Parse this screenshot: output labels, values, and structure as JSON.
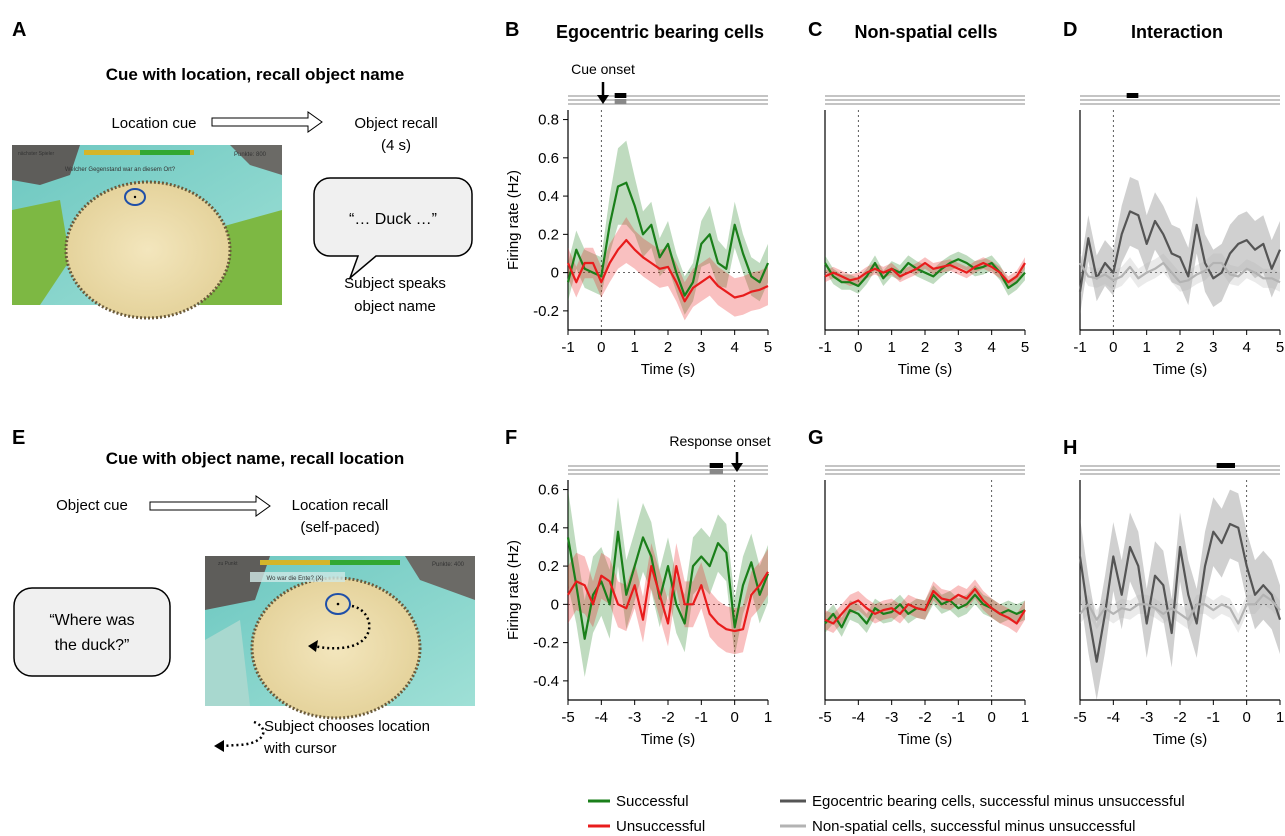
{
  "figure": {
    "panel_letters": [
      "A",
      "B",
      "C",
      "D",
      "E",
      "F",
      "G",
      "H"
    ],
    "col_titles": {
      "B": "Egocentric bearing cells",
      "C": "Non-spatial cells",
      "D": "Interaction"
    },
    "task_top": {
      "title": "Cue with location, recall object name",
      "cue": "Location cue",
      "recall_line1": "Object recall",
      "recall_line2": "(4 s)",
      "speech": "“… Duck …”",
      "note_line1": "Subject speaks",
      "note_line2": "object name",
      "hud_question": "Welcher Gegenstand war an diesem Ort?",
      "hud_points": "Punkte: 800",
      "hud_left": "nächster Spieler"
    },
    "task_bottom": {
      "title": "Cue with object name, recall location",
      "cue": "Object cue",
      "recall_line1": "Location recall",
      "recall_line2": "(self-paced)",
      "speech_line1": "“Where was",
      "speech_line2": "the duck?”",
      "note_line1": "Subject chooses location",
      "note_line2": "with cursor",
      "hud_question": "Wo war die Ente? (X)",
      "hud_points": "Punkte: 400",
      "hud_left": "zu Punkt"
    },
    "cue_onset": "Cue onset",
    "response_onset": "Response onset",
    "ylabel": "Firing rate (Hz)",
    "xlabel": "Time (s)",
    "legend": {
      "successful": "Successful",
      "unsuccessful": "Unsuccessful",
      "ego_diff": "Egocentric bearing cells, successful minus unsuccessful",
      "nonsp_diff": "Non-spatial cells, successful minus unsuccessful"
    },
    "colors": {
      "successful": "#1a7f1a",
      "unsuccessful": "#e81c1c",
      "ego": "#555555",
      "nonsp": "#b3b3b3",
      "bar_black": "#000000",
      "bar_gray": "#888888"
    }
  },
  "chart_data": [
    {
      "panel": "B",
      "type": "line",
      "xlabel": "Time (s)",
      "ylabel": "Firing rate (Hz)",
      "xlim": [
        -1,
        5
      ],
      "ylim": [
        -0.3,
        0.85
      ],
      "yticks": [
        -0.2,
        0,
        0.2,
        0.4,
        0.6,
        0.8
      ],
      "xticks": [
        -1,
        0,
        1,
        2,
        3,
        4,
        5
      ],
      "x": [
        -1,
        -0.75,
        -0.5,
        -0.25,
        0,
        0.25,
        0.5,
        0.75,
        1,
        1.25,
        1.5,
        1.75,
        2,
        2.25,
        2.5,
        2.75,
        3,
        3.25,
        3.5,
        3.75,
        4,
        4.25,
        4.5,
        4.75,
        5
      ],
      "vline": 0,
      "annotation": "Cue onset",
      "sig_bars": [
        {
          "from": 0.4,
          "to": 0.75,
          "color": "black"
        },
        {
          "from": 0.4,
          "to": 0.75,
          "color": "gray"
        }
      ],
      "series": [
        {
          "name": "Successful",
          "values": [
            -0.05,
            0.12,
            0.02,
            0.0,
            -0.02,
            0.25,
            0.45,
            0.47,
            0.35,
            0.2,
            0.25,
            0.08,
            0.15,
            0.0,
            -0.12,
            -0.05,
            0.15,
            0.2,
            0.05,
            0.02,
            0.25,
            0.1,
            -0.02,
            -0.05,
            0.05
          ],
          "err": [
            0.1,
            0.1,
            0.1,
            0.1,
            0.1,
            0.15,
            0.2,
            0.22,
            0.15,
            0.12,
            0.12,
            0.1,
            0.12,
            0.1,
            0.1,
            0.1,
            0.12,
            0.15,
            0.12,
            0.1,
            0.12,
            0.1,
            0.1,
            0.1,
            0.1
          ]
        },
        {
          "name": "Unsuccessful",
          "values": [
            0.05,
            -0.05,
            0.05,
            0.05,
            -0.05,
            0.05,
            0.12,
            0.17,
            0.12,
            0.08,
            0.05,
            0.02,
            0.03,
            -0.05,
            -0.15,
            -0.08,
            -0.05,
            -0.02,
            -0.07,
            -0.1,
            -0.13,
            -0.12,
            -0.1,
            -0.09,
            -0.07
          ],
          "err": [
            0.08,
            0.08,
            0.08,
            0.08,
            0.08,
            0.1,
            0.1,
            0.12,
            0.1,
            0.1,
            0.1,
            0.1,
            0.1,
            0.1,
            0.1,
            0.1,
            0.1,
            0.1,
            0.1,
            0.1,
            0.1,
            0.1,
            0.1,
            0.1,
            0.1
          ]
        }
      ]
    },
    {
      "panel": "C",
      "type": "line",
      "xlabel": "Time (s)",
      "xlim": [
        -1,
        5
      ],
      "ylim": [
        -0.3,
        0.85
      ],
      "xticks": [
        -1,
        0,
        1,
        2,
        3,
        4,
        5
      ],
      "x": [
        -1,
        -0.75,
        -0.5,
        -0.25,
        0,
        0.25,
        0.5,
        0.75,
        1,
        1.25,
        1.5,
        1.75,
        2,
        2.25,
        2.5,
        2.75,
        3,
        3.25,
        3.5,
        3.75,
        4,
        4.25,
        4.5,
        4.75,
        5
      ],
      "vline": 0,
      "series": [
        {
          "name": "Successful",
          "values": [
            0.05,
            -0.02,
            -0.05,
            -0.05,
            -0.07,
            -0.02,
            0.05,
            -0.03,
            0.02,
            0.0,
            0.05,
            0.02,
            0.0,
            -0.02,
            0.02,
            0.05,
            0.07,
            0.05,
            0.02,
            0.03,
            0.05,
            0.0,
            -0.08,
            -0.05,
            0.0
          ],
          "err": [
            0.04,
            0.04,
            0.04,
            0.04,
            0.04,
            0.04,
            0.04,
            0.04,
            0.04,
            0.04,
            0.04,
            0.04,
            0.04,
            0.04,
            0.04,
            0.04,
            0.04,
            0.04,
            0.04,
            0.04,
            0.04,
            0.04,
            0.04,
            0.04,
            0.04
          ]
        },
        {
          "name": "Unsuccessful",
          "values": [
            -0.02,
            0.0,
            -0.02,
            -0.04,
            -0.03,
            0.0,
            0.02,
            0.0,
            0.02,
            -0.02,
            0.0,
            0.02,
            0.05,
            0.02,
            0.03,
            0.04,
            0.02,
            0.0,
            0.03,
            0.05,
            0.03,
            0.0,
            -0.05,
            -0.02,
            0.05
          ],
          "err": [
            0.03,
            0.03,
            0.03,
            0.03,
            0.03,
            0.03,
            0.03,
            0.03,
            0.03,
            0.03,
            0.03,
            0.03,
            0.03,
            0.03,
            0.03,
            0.03,
            0.03,
            0.03,
            0.03,
            0.03,
            0.03,
            0.03,
            0.03,
            0.03,
            0.03
          ]
        }
      ]
    },
    {
      "panel": "D",
      "type": "line",
      "xlabel": "Time (s)",
      "xlim": [
        -1,
        5
      ],
      "ylim": [
        -0.3,
        0.85
      ],
      "xticks": [
        -1,
        0,
        1,
        2,
        3,
        4,
        5
      ],
      "x": [
        -1,
        -0.75,
        -0.5,
        -0.25,
        0,
        0.25,
        0.5,
        0.75,
        1,
        1.25,
        1.5,
        1.75,
        2,
        2.25,
        2.5,
        2.75,
        3,
        3.25,
        3.5,
        3.75,
        4,
        4.25,
        4.5,
        4.75,
        5
      ],
      "vline": 0,
      "sig_bars": [
        {
          "from": 0.4,
          "to": 0.75,
          "color": "black"
        }
      ],
      "series": [
        {
          "name": "Egocentric bearing cells, successful minus unsuccessful",
          "values": [
            -0.1,
            0.18,
            -0.03,
            0.05,
            0.0,
            0.2,
            0.32,
            0.3,
            0.15,
            0.27,
            0.2,
            0.1,
            0.08,
            -0.02,
            0.25,
            0.05,
            -0.03,
            0.0,
            0.1,
            0.15,
            0.17,
            0.12,
            0.15,
            0.02,
            0.12
          ],
          "err": [
            0.12,
            0.12,
            0.12,
            0.12,
            0.12,
            0.15,
            0.18,
            0.18,
            0.15,
            0.15,
            0.15,
            0.15,
            0.15,
            0.15,
            0.15,
            0.15,
            0.15,
            0.15,
            0.15,
            0.15,
            0.15,
            0.15,
            0.15,
            0.15,
            0.15
          ]
        },
        {
          "name": "Non-spatial cells, successful minus unsuccessful",
          "values": [
            0.05,
            -0.02,
            -0.03,
            -0.01,
            -0.04,
            -0.02,
            0.03,
            -0.03,
            0.0,
            0.02,
            0.05,
            0.0,
            -0.05,
            -0.04,
            -0.01,
            0.01,
            0.05,
            0.05,
            -0.01,
            -0.02,
            0.02,
            0.0,
            -0.03,
            -0.03,
            -0.05
          ],
          "err": [
            0.05,
            0.05,
            0.05,
            0.05,
            0.05,
            0.05,
            0.05,
            0.05,
            0.05,
            0.05,
            0.05,
            0.05,
            0.05,
            0.05,
            0.05,
            0.05,
            0.05,
            0.05,
            0.05,
            0.05,
            0.05,
            0.05,
            0.05,
            0.05,
            0.05
          ]
        }
      ]
    },
    {
      "panel": "F",
      "type": "line",
      "xlabel": "Time (s)",
      "ylabel": "Firing rate (Hz)",
      "xlim": [
        -5,
        1
      ],
      "ylim": [
        -0.5,
        0.65
      ],
      "yticks": [
        -0.4,
        -0.2,
        0,
        0.2,
        0.4,
        0.6
      ],
      "xticks": [
        -5,
        -4,
        -3,
        -2,
        -1,
        0,
        1
      ],
      "x": [
        -5,
        -4.75,
        -4.5,
        -4.25,
        -4,
        -3.75,
        -3.5,
        -3.25,
        -3,
        -2.75,
        -2.5,
        -2.25,
        -2,
        -1.75,
        -1.5,
        -1.25,
        -1,
        -0.75,
        -0.5,
        -0.25,
        0,
        0.25,
        0.5,
        0.75,
        1
      ],
      "vline": 0,
      "annotation": "Response onset",
      "sig_bars": [
        {
          "from": -0.75,
          "to": -0.35,
          "color": "black"
        },
        {
          "from": -0.75,
          "to": -0.35,
          "color": "gray"
        }
      ],
      "series": [
        {
          "name": "Successful",
          "values": [
            0.35,
            0.1,
            -0.18,
            0.05,
            0.12,
            0.0,
            0.38,
            0.05,
            0.2,
            0.35,
            0.25,
            0.03,
            0.2,
            0.0,
            -0.1,
            0.2,
            0.25,
            0.2,
            0.32,
            0.27,
            -0.12,
            0.1,
            0.22,
            0.05,
            0.16
          ],
          "err": [
            0.25,
            0.2,
            0.2,
            0.2,
            0.18,
            0.18,
            0.18,
            0.18,
            0.18,
            0.18,
            0.18,
            0.15,
            0.15,
            0.15,
            0.15,
            0.15,
            0.15,
            0.15,
            0.15,
            0.15,
            0.15,
            0.15,
            0.15,
            0.15,
            0.15
          ]
        },
        {
          "name": "Unsuccessful",
          "values": [
            0.05,
            0.12,
            0.1,
            0.0,
            0.15,
            0.12,
            0.0,
            -0.02,
            0.1,
            -0.08,
            0.2,
            0.05,
            -0.1,
            0.2,
            0.0,
            0.0,
            0.1,
            -0.05,
            -0.1,
            -0.13,
            -0.14,
            -0.13,
            0.05,
            0.1,
            0.17
          ],
          "err": [
            0.15,
            0.15,
            0.15,
            0.12,
            0.12,
            0.12,
            0.12,
            0.12,
            0.12,
            0.12,
            0.12,
            0.12,
            0.12,
            0.12,
            0.12,
            0.12,
            0.12,
            0.12,
            0.12,
            0.12,
            0.12,
            0.12,
            0.12,
            0.12,
            0.12
          ]
        }
      ]
    },
    {
      "panel": "G",
      "type": "line",
      "xlabel": "Time (s)",
      "xlim": [
        -5,
        1
      ],
      "ylim": [
        -0.5,
        0.65
      ],
      "xticks": [
        -5,
        -4,
        -3,
        -2,
        -1,
        0,
        1
      ],
      "x": [
        -5,
        -4.75,
        -4.5,
        -4.25,
        -4,
        -3.75,
        -3.5,
        -3.25,
        -3,
        -2.75,
        -2.5,
        -2.25,
        -2,
        -1.75,
        -1.5,
        -1.25,
        -1,
        -0.75,
        -0.5,
        -0.25,
        0,
        0.25,
        0.5,
        0.75,
        1
      ],
      "vline": 0,
      "series": [
        {
          "name": "Successful",
          "values": [
            -0.1,
            -0.05,
            -0.12,
            -0.03,
            -0.05,
            -0.1,
            -0.02,
            -0.05,
            -0.04,
            0.0,
            -0.05,
            -0.02,
            -0.03,
            0.05,
            0.0,
            0.02,
            -0.02,
            0.0,
            0.05,
            0.0,
            -0.02,
            -0.05,
            -0.03,
            -0.05,
            -0.03
          ],
          "err": [
            0.05,
            0.05,
            0.05,
            0.05,
            0.05,
            0.05,
            0.05,
            0.05,
            0.05,
            0.05,
            0.05,
            0.05,
            0.05,
            0.05,
            0.05,
            0.05,
            0.05,
            0.05,
            0.05,
            0.05,
            0.05,
            0.05,
            0.05,
            0.05,
            0.05
          ]
        },
        {
          "name": "Unsuccessful",
          "values": [
            -0.08,
            -0.1,
            -0.05,
            0.0,
            0.02,
            -0.02,
            -0.05,
            -0.03,
            -0.02,
            -0.05,
            0.0,
            -0.02,
            -0.03,
            0.07,
            0.03,
            0.02,
            0.05,
            0.03,
            0.08,
            0.02,
            -0.02,
            -0.05,
            -0.07,
            -0.1,
            -0.03
          ],
          "err": [
            0.05,
            0.05,
            0.05,
            0.05,
            0.05,
            0.05,
            0.05,
            0.05,
            0.05,
            0.05,
            0.05,
            0.05,
            0.05,
            0.05,
            0.05,
            0.05,
            0.05,
            0.05,
            0.05,
            0.05,
            0.05,
            0.05,
            0.05,
            0.05,
            0.05
          ]
        }
      ]
    },
    {
      "panel": "H",
      "type": "line",
      "xlabel": "Time (s)",
      "xlim": [
        -5,
        1
      ],
      "ylim": [
        -0.5,
        0.65
      ],
      "xticks": [
        -5,
        -4,
        -3,
        -2,
        -1,
        0,
        1
      ],
      "x": [
        -5,
        -4.75,
        -4.5,
        -4.25,
        -4,
        -3.75,
        -3.5,
        -3.25,
        -3,
        -2.75,
        -2.5,
        -2.25,
        -2,
        -1.75,
        -1.5,
        -1.25,
        -1,
        -0.75,
        -0.5,
        -0.25,
        0,
        0.25,
        0.5,
        0.75,
        1
      ],
      "vline": 0,
      "sig_bars": [
        {
          "from": -0.9,
          "to": -0.35,
          "color": "black"
        }
      ],
      "series": [
        {
          "name": "Egocentric bearing cells, successful minus unsuccessful",
          "values": [
            0.25,
            -0.05,
            -0.3,
            -0.05,
            0.25,
            0.05,
            0.3,
            0.2,
            -0.1,
            0.15,
            0.1,
            -0.15,
            0.3,
            0.05,
            -0.1,
            0.2,
            0.38,
            0.32,
            0.42,
            0.4,
            0.2,
            0.05,
            0.1,
            0.05,
            -0.08
          ],
          "err": [
            0.2,
            0.2,
            0.2,
            0.2,
            0.18,
            0.18,
            0.18,
            0.18,
            0.18,
            0.18,
            0.18,
            0.18,
            0.18,
            0.18,
            0.18,
            0.18,
            0.18,
            0.18,
            0.18,
            0.18,
            0.18,
            0.18,
            0.18,
            0.18,
            0.18
          ]
        },
        {
          "name": "Non-spatial cells, successful minus unsuccessful",
          "values": [
            -0.05,
            0.0,
            -0.08,
            -0.02,
            -0.05,
            -0.02,
            -0.03,
            0.0,
            0.0,
            -0.02,
            -0.05,
            -0.02,
            -0.05,
            -0.08,
            0.0,
            0.0,
            -0.03,
            0.0,
            -0.02,
            -0.1,
            0.0,
            0.0,
            0.05,
            0.02,
            -0.03
          ],
          "err": [
            0.05,
            0.05,
            0.05,
            0.05,
            0.05,
            0.05,
            0.05,
            0.05,
            0.05,
            0.05,
            0.05,
            0.05,
            0.05,
            0.05,
            0.05,
            0.05,
            0.05,
            0.05,
            0.05,
            0.05,
            0.05,
            0.05,
            0.05,
            0.05,
            0.05
          ]
        }
      ]
    }
  ]
}
